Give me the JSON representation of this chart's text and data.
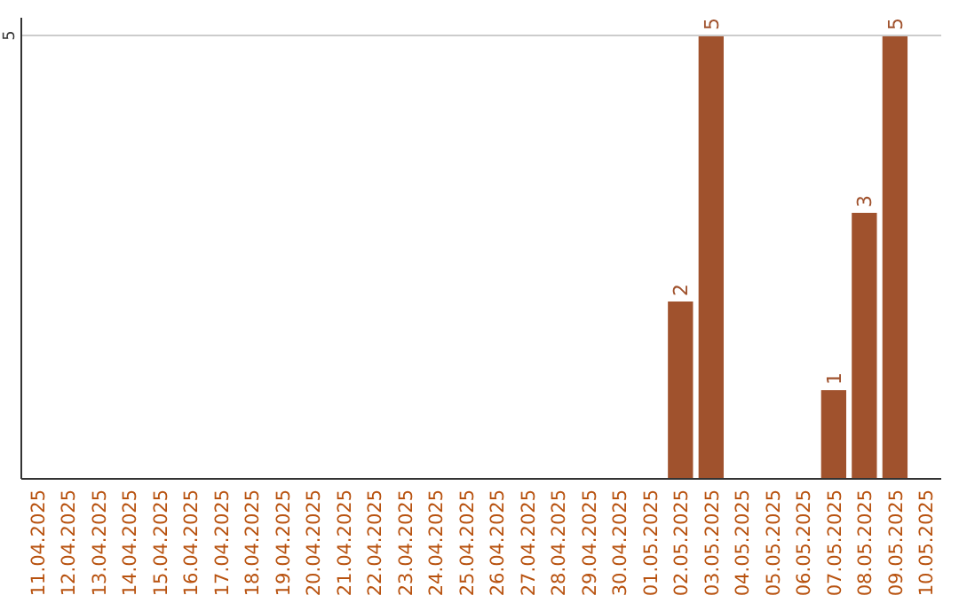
{
  "chart_data": {
    "type": "bar",
    "categories": [
      "11.04.2025",
      "12.04.2025",
      "13.04.2025",
      "14.04.2025",
      "15.04.2025",
      "16.04.2025",
      "17.04.2025",
      "18.04.2025",
      "19.04.2025",
      "20.04.2025",
      "21.04.2025",
      "22.04.2025",
      "23.04.2025",
      "24.04.2025",
      "25.04.2025",
      "26.04.2025",
      "27.04.2025",
      "28.04.2025",
      "29.04.2025",
      "30.04.2025",
      "01.05.2025",
      "02.05.2025",
      "03.05.2025",
      "04.05.2025",
      "05.05.2025",
      "06.05.2025",
      "07.05.2025",
      "08.05.2025",
      "09.05.2025",
      "10.05.2025"
    ],
    "values": [
      null,
      null,
      null,
      null,
      null,
      null,
      null,
      null,
      null,
      null,
      null,
      null,
      null,
      null,
      null,
      null,
      null,
      null,
      null,
      null,
      null,
      2,
      5,
      null,
      null,
      null,
      1,
      3,
      5,
      null
    ],
    "color": "#a0522d",
    "ylim": [
      0,
      5.2
    ],
    "yticks": [
      5
    ],
    "grid": "y",
    "data_labels": true
  }
}
